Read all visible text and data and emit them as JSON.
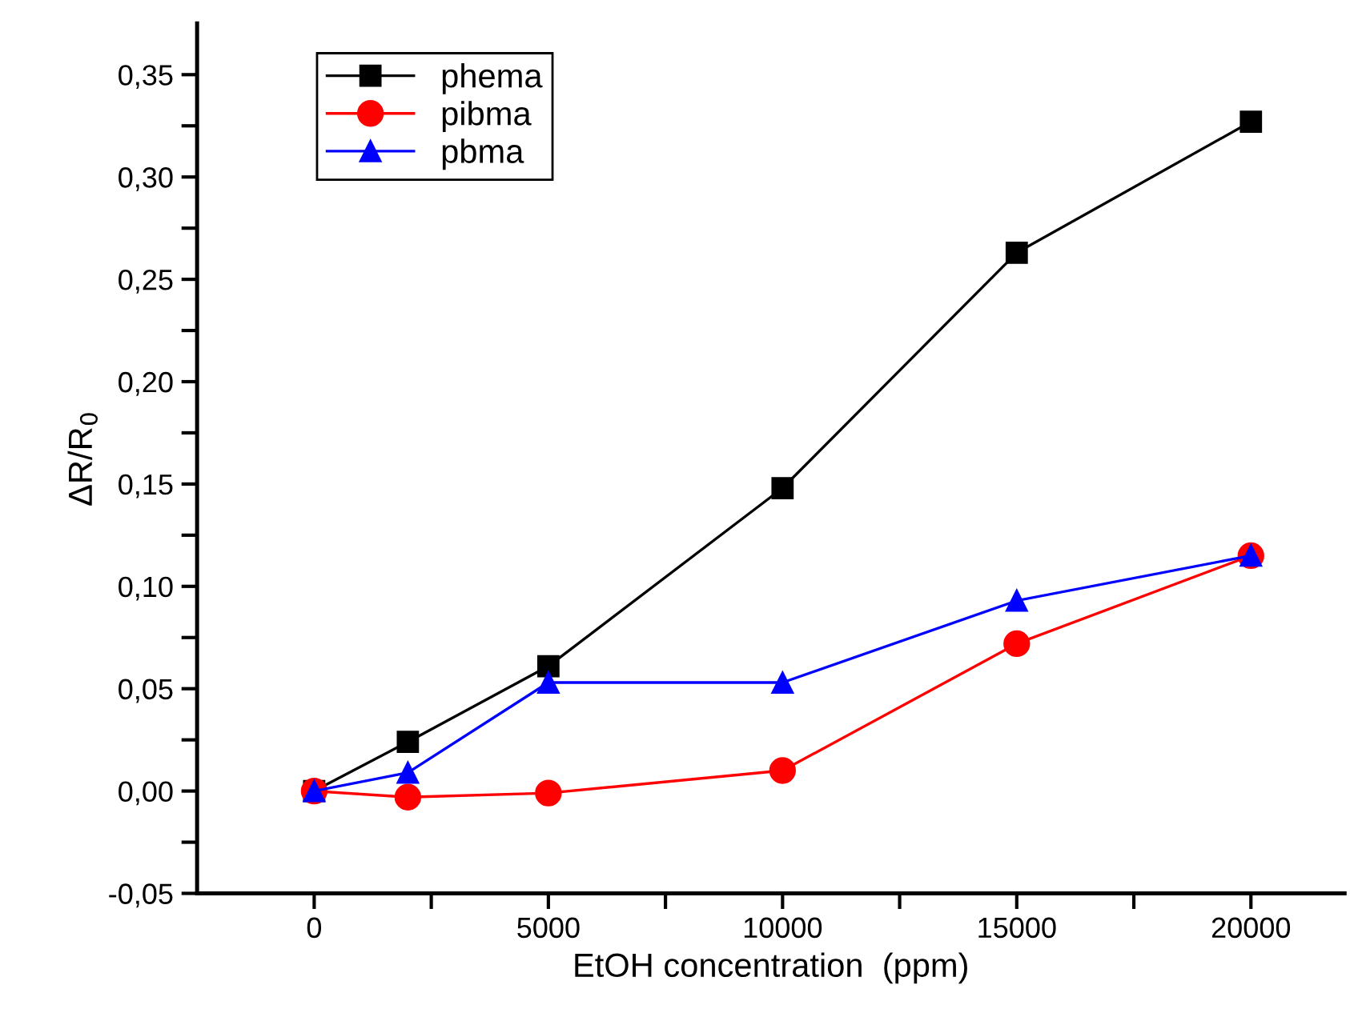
{
  "chart_data": {
    "type": "line",
    "xlabel": "EtOH concentration  (ppm)",
    "ylabel": "ΔR/R$_{0}$",
    "x": [
      0,
      2000,
      5000,
      10000,
      15000,
      20000
    ],
    "series": [
      {
        "name": "phema",
        "color": "#000000",
        "marker": "square",
        "values": [
          0,
          0.024,
          0.061,
          0.148,
          0.263,
          0.327
        ]
      },
      {
        "name": "pibma",
        "color": "#ff0000",
        "marker": "circle",
        "values": [
          0,
          -0.003,
          -0.001,
          0.01,
          0.072,
          0.115
        ]
      },
      {
        "name": "pbma",
        "color": "#0000ff",
        "marker": "triangle",
        "values": [
          0,
          0.009,
          0.053,
          0.053,
          0.093,
          0.115
        ]
      }
    ],
    "xlim": [
      -2500,
      22000
    ],
    "xticks": [
      0,
      {
        "value": 2500,
        "label": null
      },
      5000,
      {
        "value": 7500,
        "label": null
      },
      10000,
      {
        "value": 12500,
        "label": null
      },
      15000,
      {
        "value": 17500,
        "label": null
      },
      20000
    ],
    "ylim": [
      -0.05,
      0.375
    ],
    "yticks": [
      {
        "value": -0.05,
        "label": "-0,05"
      },
      {
        "value": -0.025,
        "label": null
      },
      {
        "value": 0,
        "label": "0,00"
      },
      {
        "value": 0.025,
        "label": null
      },
      {
        "value": 0.05,
        "label": "0,05"
      },
      {
        "value": 0.075,
        "label": null
      },
      {
        "value": 0.1,
        "label": "0,10"
      },
      {
        "value": 0.125,
        "label": null
      },
      {
        "value": 0.15,
        "label": "0,15"
      },
      {
        "value": 0.175,
        "label": null
      },
      {
        "value": 0.2,
        "label": "0,20"
      },
      {
        "value": 0.225,
        "label": null
      },
      {
        "value": 0.25,
        "label": "0,25"
      },
      {
        "value": 0.275,
        "label": null
      },
      {
        "value": 0.3,
        "label": "0,30"
      },
      {
        "value": 0.325,
        "label": null
      },
      {
        "value": 0.35,
        "label": "0,35"
      }
    ],
    "grid": false,
    "legend": "top left",
    "line_style": "solid"
  }
}
